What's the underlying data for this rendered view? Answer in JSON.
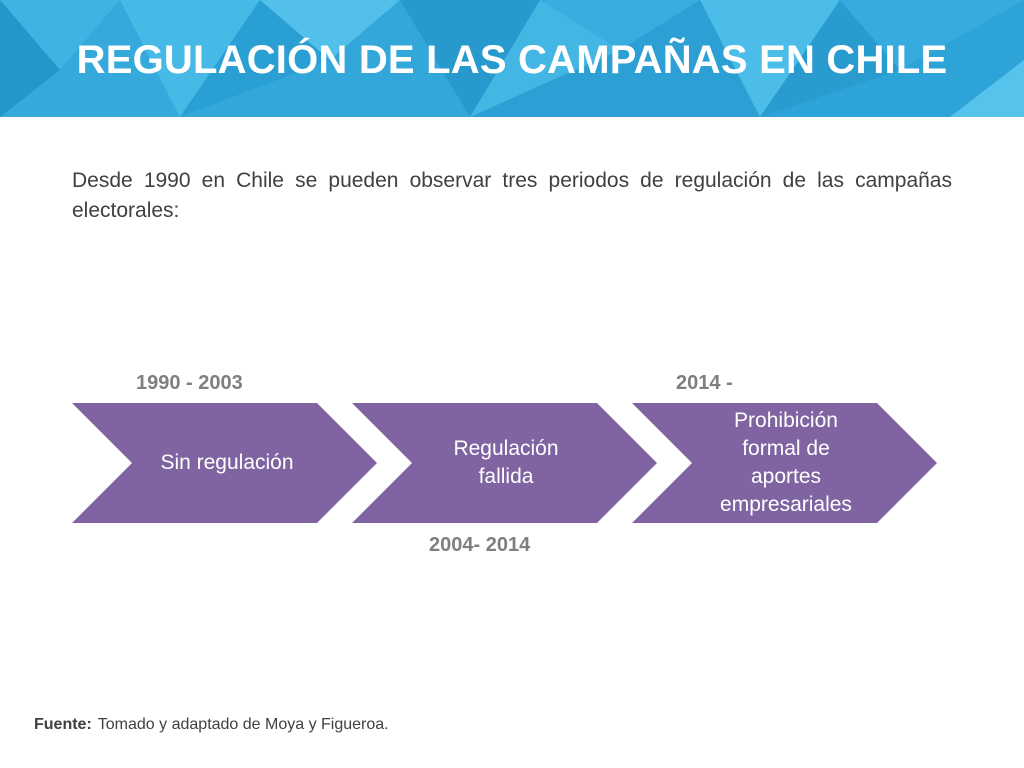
{
  "title": "REGULACIÓN DE LAS CAMPAÑAS EN CHILE",
  "intro": "Desde 1990 en Chile se pueden observar tres periodos de regulación de las campañas electorales:",
  "periods": [
    {
      "label": "Sin regulación",
      "years": "1990 - 2003"
    },
    {
      "label": "Regulación fallida",
      "years": "2004- 2014"
    },
    {
      "label": "Prohibición formal de aportes empresariales",
      "years": "2014 -"
    }
  ],
  "source": {
    "label": "Fuente:",
    "text": "Tomado y adaptado de Moya y Figueroa."
  },
  "colors": {
    "header": "#2fa6d8",
    "chevron": "#8064a2",
    "title_text": "#ffffff",
    "year_text": "#7f7f7f",
    "body_text": "#404040"
  }
}
